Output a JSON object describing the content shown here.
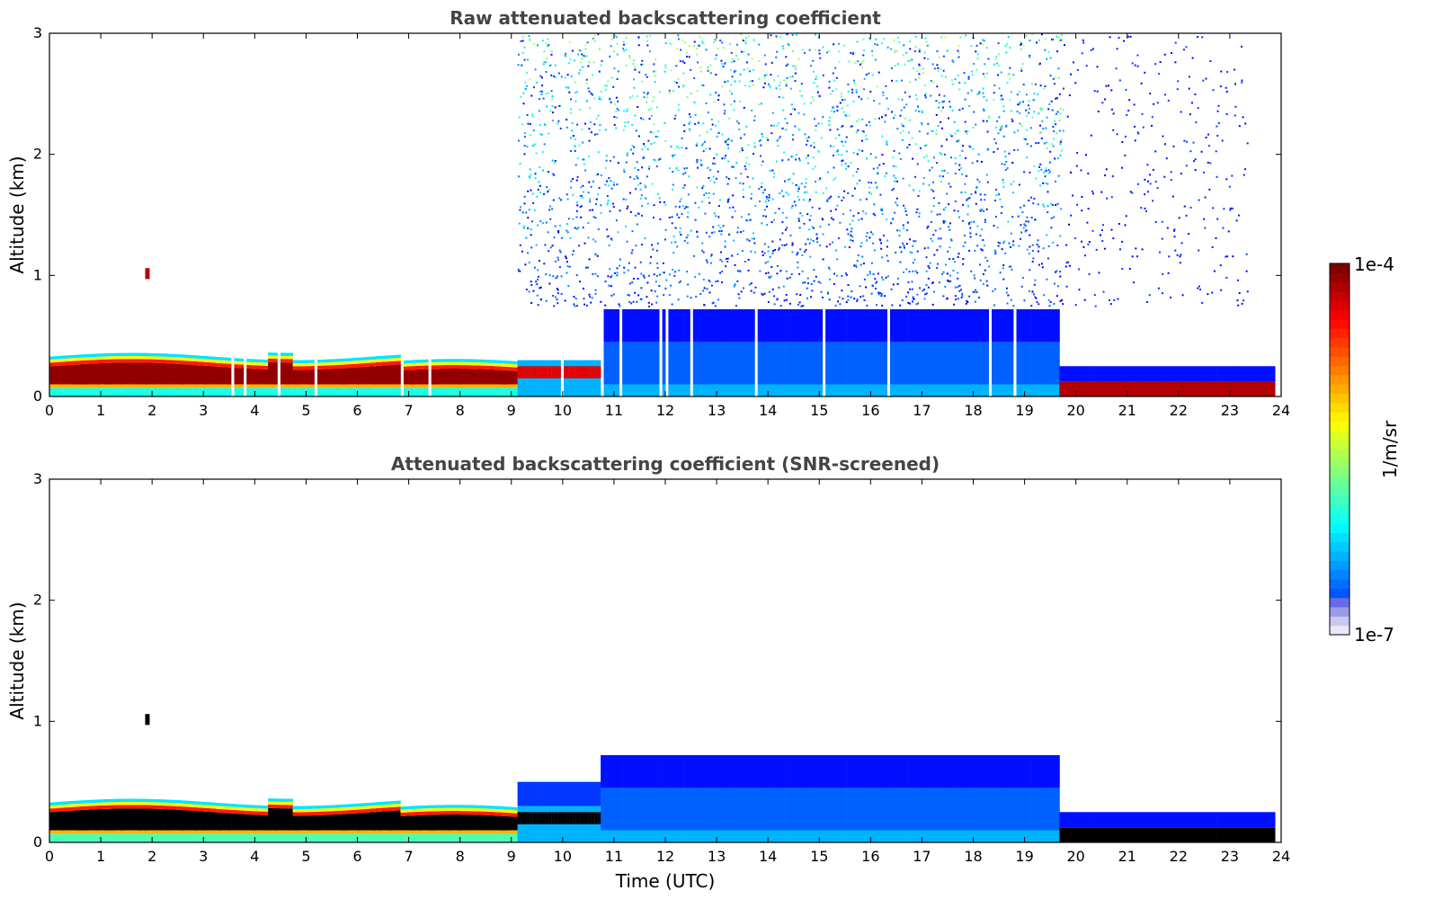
{
  "chart_data": [
    {
      "type": "heatmap",
      "title": "Raw attenuated backscattering coefficient",
      "xlabel": "",
      "ylabel": "Altitude (km)",
      "xlim": [
        0,
        24
      ],
      "ylim": [
        0,
        3
      ],
      "xticks": [
        "0",
        "1",
        "2",
        "3",
        "4",
        "5",
        "6",
        "7",
        "8",
        "9",
        "10",
        "11",
        "12",
        "13",
        "14",
        "15",
        "16",
        "17",
        "18",
        "19",
        "20",
        "21",
        "22",
        "23",
        "24"
      ],
      "yticks": [
        "0",
        "1",
        "2",
        "3"
      ],
      "features": [
        {
          "name": "boundary-layer-aerosol",
          "t_start": 0,
          "t_end": 9.1,
          "alt_top_km": 0.35,
          "level": "high"
        },
        {
          "name": "isolated-cloud",
          "t": 1.9,
          "alt_km": 1.0,
          "level": "high"
        },
        {
          "name": "daytime-noise",
          "t_start": 9.1,
          "t_end": 19.7,
          "alt_top_km": 3.0,
          "level": "low"
        },
        {
          "name": "daytime-mixed-layer",
          "t_start": 10.7,
          "t_end": 19.6,
          "alt_top_km": 0.72,
          "level": "low"
        },
        {
          "name": "evening-residual-layer",
          "t_start": 19.7,
          "t_end": 23.8,
          "alt_top_km": 0.25,
          "level": "low"
        },
        {
          "name": "evening-surface-layer",
          "t_start": 19.7,
          "t_end": 23.8,
          "alt_top_km": 0.1,
          "level": "high"
        }
      ]
    },
    {
      "type": "heatmap",
      "title": "Attenuated backscattering coefficient (SNR-screened)",
      "xlabel": "Time (UTC)",
      "ylabel": "Altitude (km)",
      "xlim": [
        0,
        24
      ],
      "ylim": [
        0,
        3
      ],
      "xticks": [
        "0",
        "1",
        "2",
        "3",
        "4",
        "5",
        "6",
        "7",
        "8",
        "9",
        "10",
        "11",
        "12",
        "13",
        "14",
        "15",
        "16",
        "17",
        "18",
        "19",
        "20",
        "21",
        "22",
        "23",
        "24"
      ],
      "yticks": [
        "0",
        "1",
        "2",
        "3"
      ],
      "features": [
        {
          "name": "boundary-layer-aerosol",
          "t_start": 0,
          "t_end": 9.1,
          "alt_top_km": 0.35,
          "level": "saturated"
        },
        {
          "name": "isolated-cloud",
          "t": 1.9,
          "alt_km": 1.0,
          "level": "saturated"
        },
        {
          "name": "daytime-mixed-layer",
          "t_start": 10.7,
          "t_end": 19.6,
          "alt_top_km": 0.72,
          "level": "low"
        },
        {
          "name": "evening-residual-layer",
          "t_start": 19.7,
          "t_end": 23.8,
          "alt_top_km": 0.25,
          "level": "low"
        },
        {
          "name": "evening-surface-layer",
          "t_start": 19.7,
          "t_end": 23.8,
          "alt_top_km": 0.1,
          "level": "saturated"
        }
      ]
    }
  ],
  "colorbar": {
    "label": "1/m/sr",
    "max_label": "1e-4",
    "min_label": "1e-7",
    "scale": "log",
    "colormap": "jet"
  }
}
